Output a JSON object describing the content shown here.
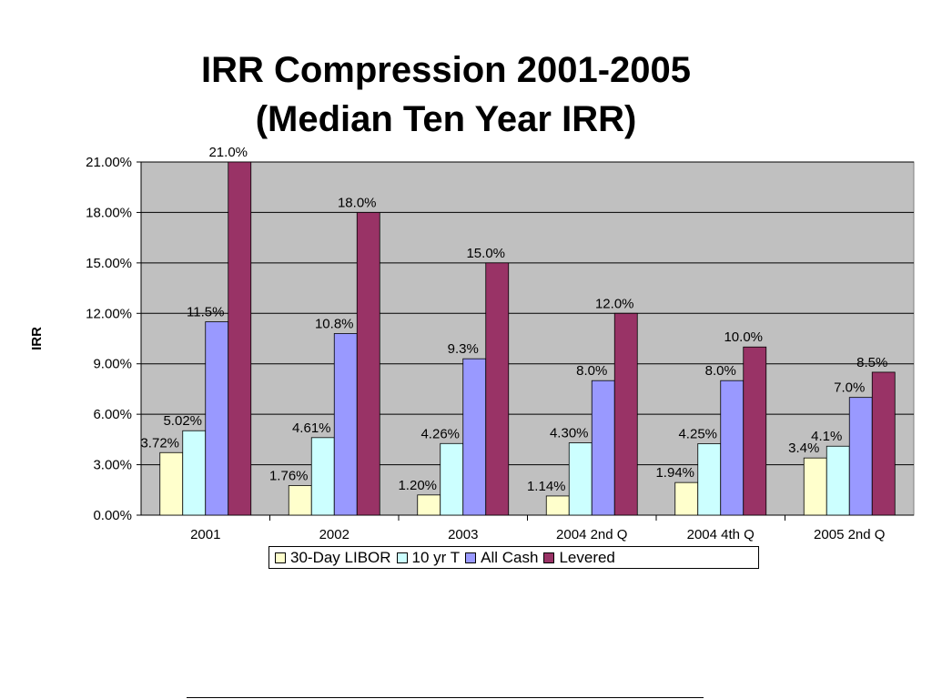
{
  "title_line_1": "IRR Compression 2001-2005",
  "title_line_2": "(Median Ten Year IRR)",
  "chart_data": {
    "type": "bar",
    "ylabel": "IRR",
    "xlabel": "",
    "ylim": [
      0,
      21
    ],
    "yticks": [
      "0.00%",
      "3.00%",
      "6.00%",
      "9.00%",
      "12.00%",
      "15.00%",
      "18.00%",
      "21.00%"
    ],
    "ytick_values": [
      0,
      3,
      6,
      9,
      12,
      15,
      18,
      21
    ],
    "grid": true,
    "legend_position": "bottom",
    "categories": [
      "2001",
      "2002",
      "2003",
      "2004 2nd Q",
      "2004 4th Q",
      "2005 2nd Q"
    ],
    "series": [
      {
        "name": "30-Day LIBOR",
        "color": "#FFFFCC",
        "values": [
          3.72,
          1.76,
          1.2,
          1.14,
          1.94,
          3.4
        ],
        "labels": [
          "3.72%",
          "1.76%",
          "1.20%",
          "1.14%",
          "1.94%",
          "3.4%"
        ]
      },
      {
        "name": "10 yr T",
        "color": "#CCFFFF",
        "values": [
          5.02,
          4.61,
          4.26,
          4.3,
          4.25,
          4.1
        ],
        "labels": [
          "5.02%",
          "4.61%",
          "4.26%",
          "4.30%",
          "4.25%",
          "4.1%"
        ]
      },
      {
        "name": "All Cash",
        "color": "#9999FF",
        "values": [
          11.5,
          10.8,
          9.3,
          8.0,
          8.0,
          7.0
        ],
        "labels": [
          "11.5%",
          "10.8%",
          "9.3%",
          "8.0%",
          "8.0%",
          "7.0%"
        ]
      },
      {
        "name": "Levered",
        "color": "#993366",
        "values": [
          21.0,
          18.0,
          15.0,
          12.0,
          10.0,
          8.5
        ],
        "labels": [
          "21.0%",
          "18.0%",
          "15.0%",
          "12.0%",
          "10.0%",
          "8.5%"
        ]
      }
    ],
    "plot_background": "#C0C0C0"
  }
}
